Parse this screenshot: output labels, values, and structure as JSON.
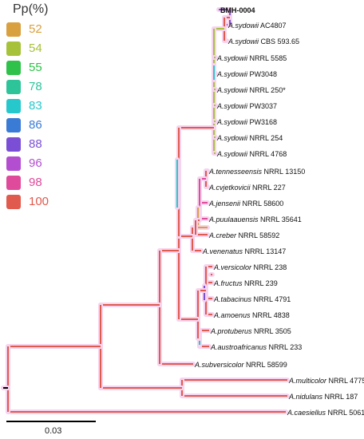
{
  "legend": {
    "title": "Pp(%)",
    "items": [
      {
        "label": "52",
        "color": "#d9a040"
      },
      {
        "label": "54",
        "color": "#a6c23a"
      },
      {
        "label": "55",
        "color": "#2ec24a"
      },
      {
        "label": "78",
        "color": "#2ec49a"
      },
      {
        "label": "83",
        "color": "#27c8cc"
      },
      {
        "label": "86",
        "color": "#3a7bd5"
      },
      {
        "label": "88",
        "color": "#7a4fd6"
      },
      {
        "label": "96",
        "color": "#b44ed0"
      },
      {
        "label": "98",
        "color": "#e04a9a"
      },
      {
        "label": "100",
        "color": "#e05a4e"
      }
    ]
  },
  "scale": {
    "label": "0.03"
  },
  "tips": [
    {
      "id": "bmh",
      "genus": "",
      "rest": "BMH-0004",
      "bold": true
    },
    {
      "id": "ac4807",
      "genus": "A.sydowii",
      "rest": " AC4807"
    },
    {
      "id": "cbs593",
      "genus": "A.sydowii",
      "rest": " CBS 593.65"
    },
    {
      "id": "n5585",
      "genus": "A.sydowii",
      "rest": " NRRL 5585"
    },
    {
      "id": "pw3048",
      "genus": "A.sydowii",
      "rest": " PW3048"
    },
    {
      "id": "n250",
      "genus": "A.sydowii",
      "rest": " NRRL 250*"
    },
    {
      "id": "pw3037",
      "genus": "A.sydowii",
      "rest": " PW3037"
    },
    {
      "id": "pw3168",
      "genus": "A.sydowii",
      "rest": " PW3168"
    },
    {
      "id": "n254",
      "genus": "A.sydowii",
      "rest": " NRRL 254"
    },
    {
      "id": "n4768",
      "genus": "A.sydowii",
      "rest": " NRRL 4768"
    },
    {
      "id": "tenn",
      "genus": "A.tennesseensis",
      "rest": " NRRL 13150"
    },
    {
      "id": "cvjet",
      "genus": "A.cvjetkovicii",
      "rest": " NRRL 227"
    },
    {
      "id": "jens",
      "genus": "A.jensenii",
      "rest": " NRRL 58600"
    },
    {
      "id": "puul",
      "genus": "A.puulaauensis",
      "rest": " NRRL 35641"
    },
    {
      "id": "creber",
      "genus": "A.creber",
      "rest": " NRRL 58592"
    },
    {
      "id": "venen",
      "genus": "A.venenatus",
      "rest": " NRRL 13147"
    },
    {
      "id": "versi",
      "genus": "A.versicolor",
      "rest": " NRRL 238"
    },
    {
      "id": "fruct",
      "genus": "A.fructus",
      "rest": " NRRL 239"
    },
    {
      "id": "tabac",
      "genus": "A.tabacinus",
      "rest": " NRRL 4791"
    },
    {
      "id": "amoen",
      "genus": "A.amoenus",
      "rest": " NRRL 4838"
    },
    {
      "id": "protu",
      "genus": "A.protuberus",
      "rest": " NRRL 3505"
    },
    {
      "id": "austro",
      "genus": "A.austroafricanus",
      "rest": " NRRL 233"
    },
    {
      "id": "subver",
      "genus": "A.subversicolor",
      "rest": " NRRL 58599"
    },
    {
      "id": "multi",
      "genus": "A.multicolor",
      "rest": " NRRL 4775"
    },
    {
      "id": "nidul",
      "genus": "A.nidulans",
      "rest": " NRRL 187"
    },
    {
      "id": "caes",
      "genus": "A.caesiellus",
      "rest": " NRRL 5061"
    }
  ]
}
